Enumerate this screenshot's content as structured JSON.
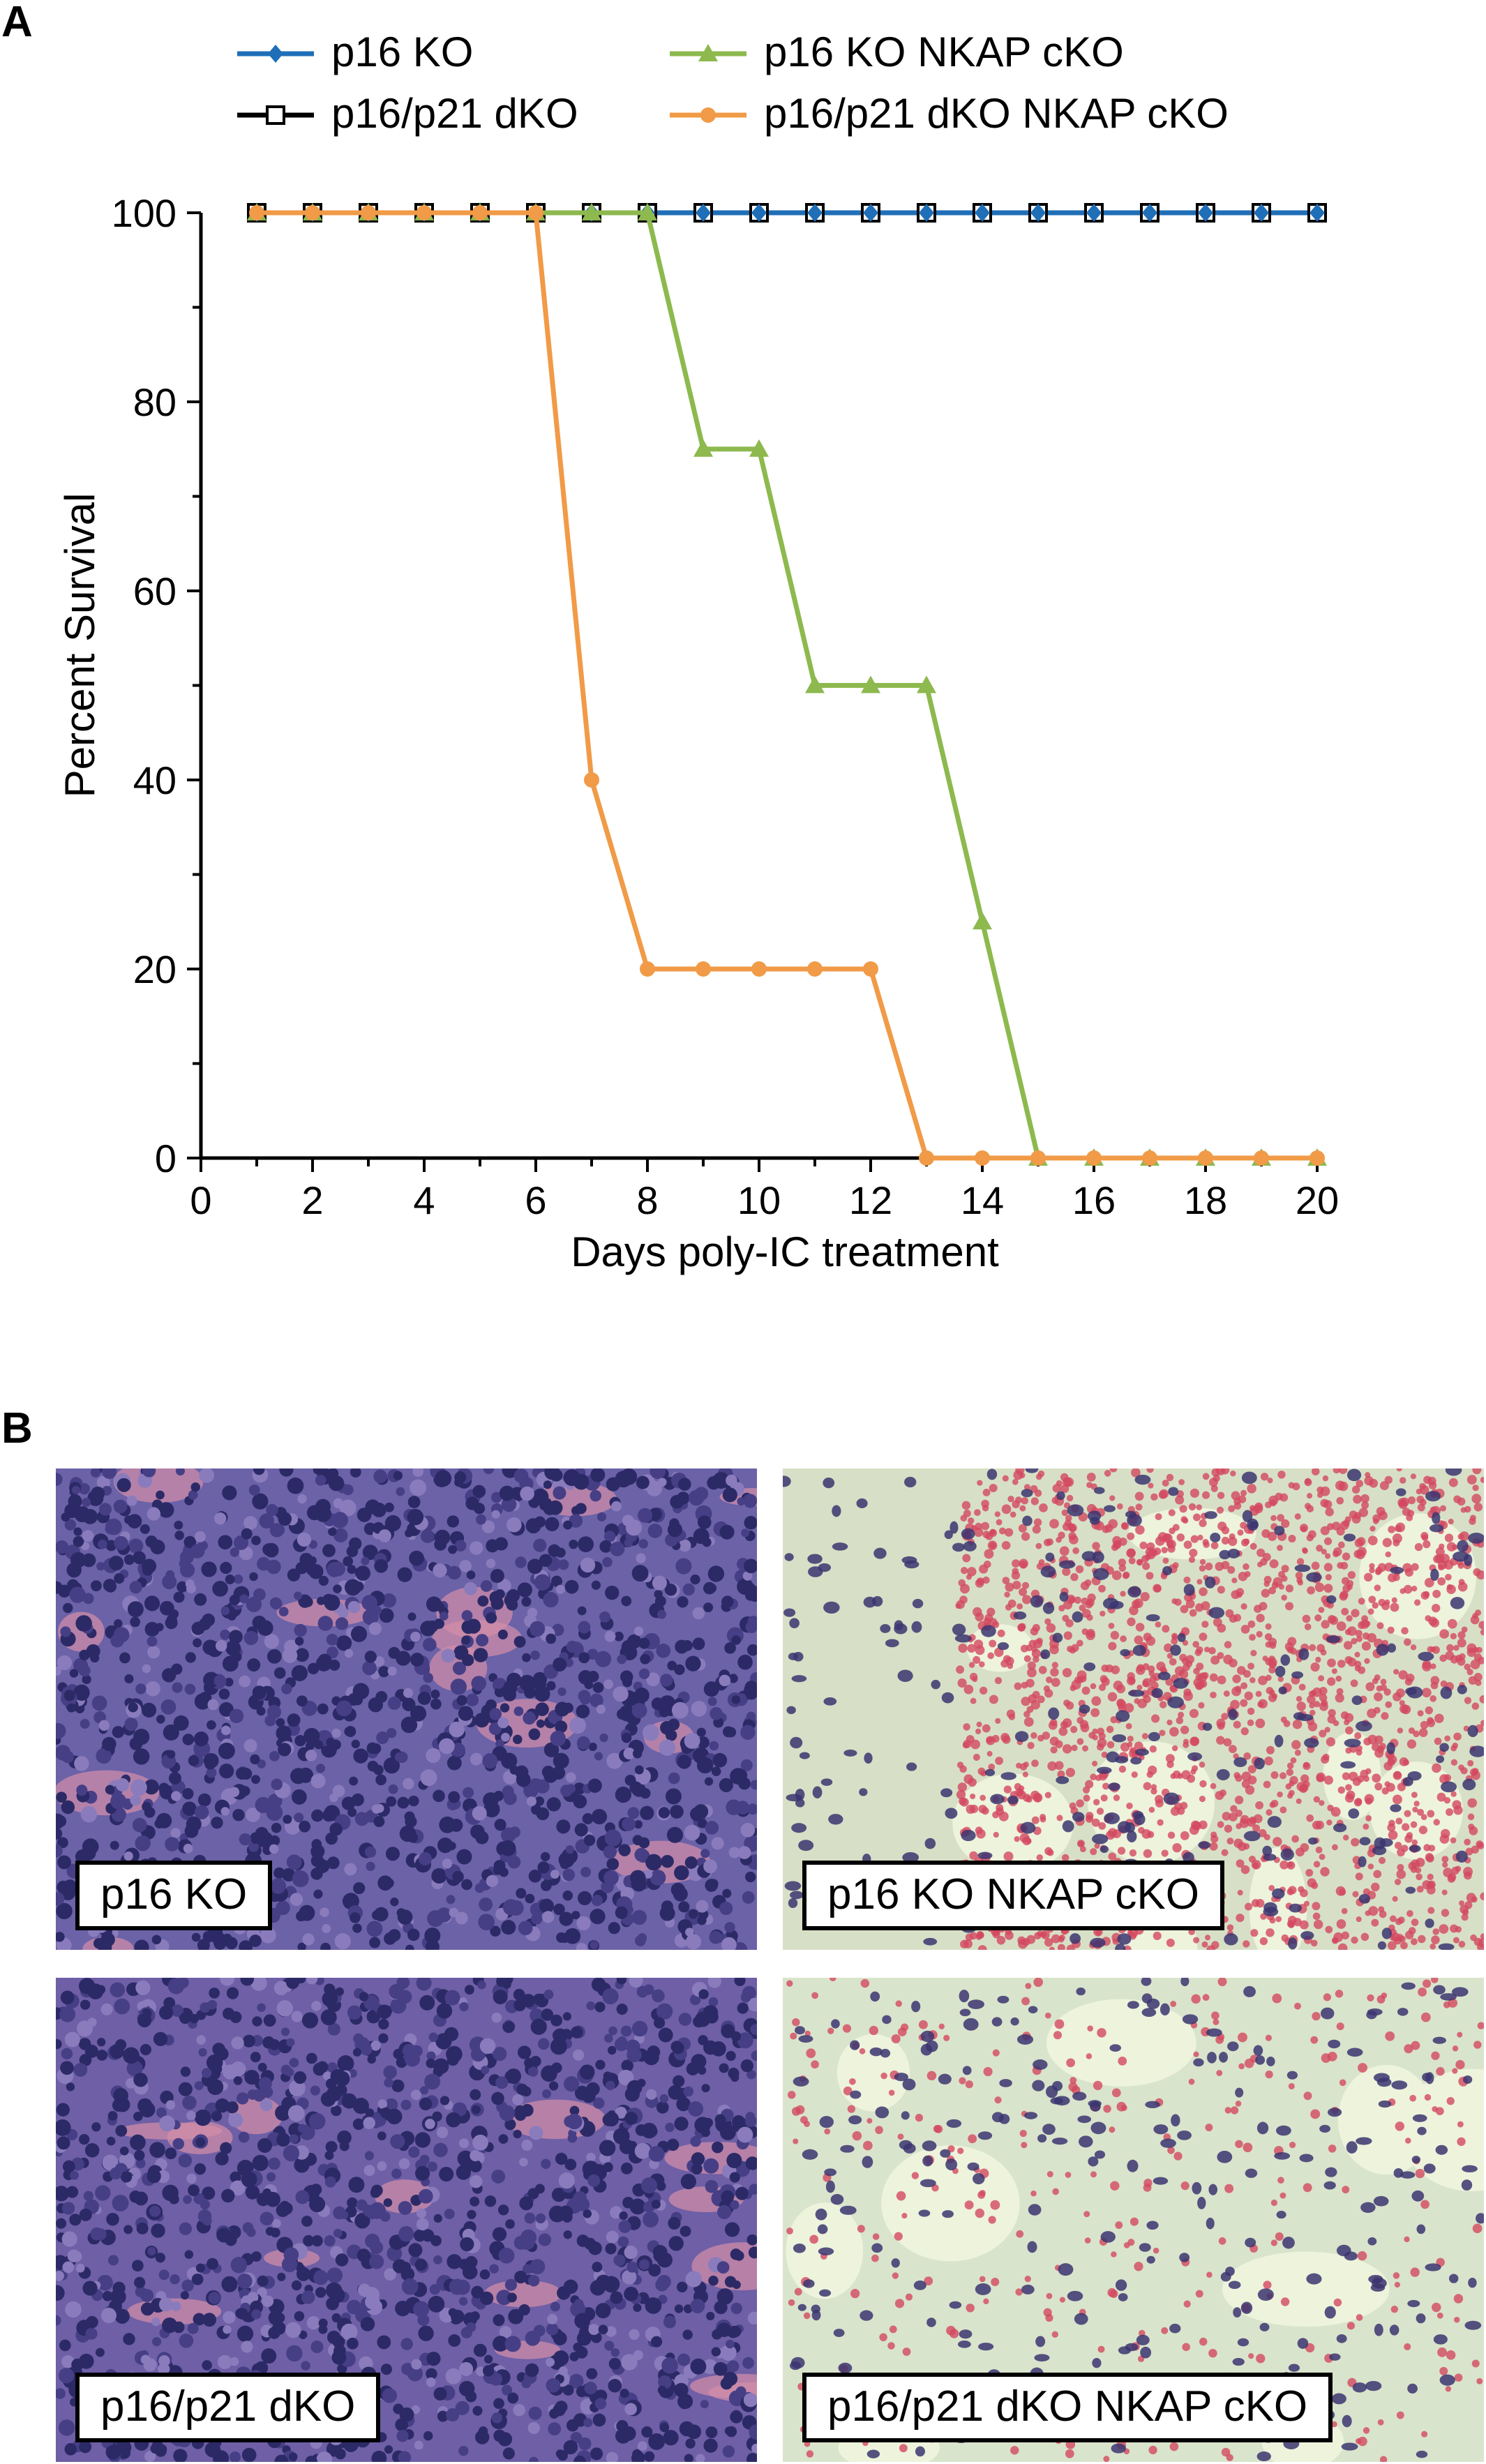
{
  "panel_a_letter": "A",
  "panel_b_letter": "B",
  "chart_data": {
    "type": "line",
    "xlabel": "Days poly-IC treatment",
    "ylabel": "Percent Survival",
    "xlim": [
      0,
      20
    ],
    "ylim": [
      0,
      100
    ],
    "xticks": [
      0,
      2,
      4,
      6,
      8,
      10,
      12,
      14,
      16,
      18,
      20
    ],
    "yticks": [
      0,
      20,
      40,
      60,
      80,
      100
    ],
    "grid": false,
    "legend_position": "top",
    "x": [
      1,
      2,
      3,
      4,
      5,
      6,
      7,
      8,
      9,
      10,
      11,
      12,
      13,
      14,
      15,
      16,
      17,
      18,
      19,
      20
    ],
    "series": [
      {
        "name": "p16 KO",
        "color": "#1f6fb8",
        "marker": "diamond",
        "values": [
          100,
          100,
          100,
          100,
          100,
          100,
          100,
          100,
          100,
          100,
          100,
          100,
          100,
          100,
          100,
          100,
          100,
          100,
          100,
          100
        ]
      },
      {
        "name": "p16/p21 dKO",
        "color": "#000000",
        "marker": "open-square",
        "values": [
          100,
          100,
          100,
          100,
          100,
          100,
          100,
          100,
          100,
          100,
          100,
          100,
          100,
          100,
          100,
          100,
          100,
          100,
          100,
          100
        ]
      },
      {
        "name": "p16 KO NKAP cKO",
        "color": "#8db94e",
        "marker": "triangle",
        "values": [
          100,
          100,
          100,
          100,
          100,
          100,
          100,
          100,
          75,
          75,
          50,
          50,
          50,
          25,
          0,
          0,
          0,
          0,
          0,
          0
        ]
      },
      {
        "name": "p16/p21 dKO NKAP cKO",
        "color": "#f19a47",
        "marker": "circle",
        "values": [
          100,
          100,
          100,
          100,
          100,
          100,
          40,
          20,
          20,
          20,
          20,
          20,
          0,
          0,
          0,
          0,
          0,
          0,
          0,
          0
        ]
      }
    ]
  },
  "histology": {
    "panels": [
      {
        "label": "p16 KO",
        "tissue": "dense",
        "tone": "#6b62a8"
      },
      {
        "label": "p16 KO NKAP cKO",
        "tissue": "hemorrhagic",
        "tone": "#d7e0c6"
      },
      {
        "label": "p16/p21 dKO",
        "tissue": "dense",
        "tone": "#6e5fa6"
      },
      {
        "label": "p16/p21 dKO NKAP cKO",
        "tissue": "sparse",
        "tone": "#d9e4cc"
      }
    ]
  }
}
